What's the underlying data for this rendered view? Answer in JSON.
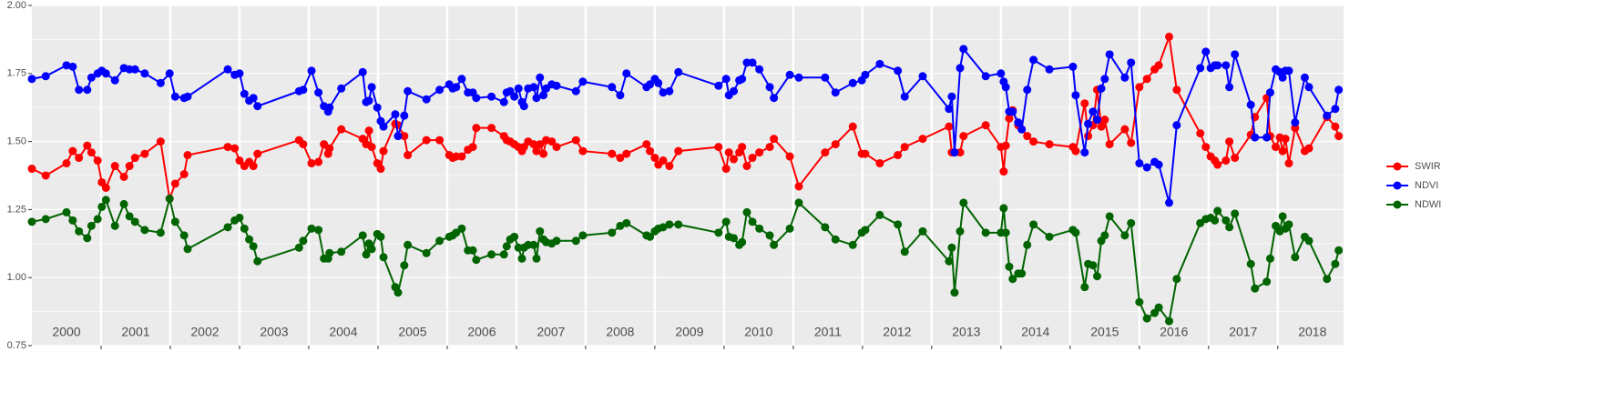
{
  "chart_data": {
    "type": "line",
    "x": [
      2000.0,
      2000.2,
      2000.5,
      2000.59,
      2000.68,
      2000.8,
      2000.86,
      2000.95,
      2001.01,
      2001.07,
      2001.2,
      2001.33,
      2001.41,
      2001.49,
      2001.63,
      2001.86,
      2001.99,
      2002.07,
      2002.2,
      2002.25,
      2002.83,
      2002.93,
      2003.0,
      2003.07,
      2003.14,
      2003.2,
      2003.26,
      2003.86,
      2003.92,
      2004.04,
      2004.14,
      2004.22,
      2004.28,
      2004.3,
      2004.47,
      2004.78,
      2004.83,
      2004.87,
      2004.91,
      2004.99,
      2005.04,
      2005.08,
      2005.25,
      2005.29,
      2005.38,
      2005.43,
      2005.7,
      2005.89,
      2006.03,
      2006.08,
      2006.13,
      2006.21,
      2006.3,
      2006.37,
      2006.42,
      2006.64,
      2006.82,
      2006.86,
      2006.91,
      2006.97,
      2007.03,
      2007.08,
      2007.11,
      2007.17,
      2007.25,
      2007.29,
      2007.34,
      2007.39,
      2007.43,
      2007.51,
      2007.58,
      2007.86,
      2007.96,
      2008.38,
      2008.5,
      2008.59,
      2008.88,
      2008.93,
      2009.0,
      2009.05,
      2009.12,
      2009.21,
      2009.34,
      2009.92,
      2010.03,
      2010.07,
      2010.14,
      2010.22,
      2010.26,
      2010.33,
      2010.41,
      2010.51,
      2010.66,
      2010.72,
      2010.95,
      2011.08,
      2011.46,
      2011.61,
      2011.86,
      2011.99,
      2012.04,
      2012.25,
      2012.51,
      2012.61,
      2012.87,
      2013.25,
      2013.29,
      2013.33,
      2013.41,
      2013.46,
      2013.78,
      2014.0,
      2014.04,
      2014.07,
      2014.12,
      2014.17,
      2014.25,
      2014.3,
      2014.38,
      2014.47,
      2014.7,
      2015.04,
      2015.08,
      2015.21,
      2015.26,
      2015.33,
      2015.39,
      2015.45,
      2015.5,
      2015.57,
      2015.79,
      2015.88,
      2016.0,
      2016.11,
      2016.22,
      2016.28,
      2016.43,
      2016.54,
      2016.88,
      2016.96,
      2017.03,
      2017.09,
      2017.13,
      2017.25,
      2017.3,
      2017.38,
      2017.61,
      2017.67,
      2017.84,
      2017.89,
      2017.97,
      2018.03,
      2018.07,
      2018.11,
      2018.16,
      2018.25,
      2018.39,
      2018.45,
      2018.71,
      2018.83,
      2018.88
    ],
    "series": [
      {
        "name": "SWIR",
        "color": "#ff0000",
        "values": [
          1.4,
          1.375,
          1.42,
          1.465,
          1.44,
          1.485,
          1.46,
          1.43,
          1.35,
          1.33,
          1.41,
          1.37,
          1.41,
          1.44,
          1.455,
          1.5,
          1.29,
          1.345,
          1.38,
          1.45,
          1.48,
          1.475,
          1.43,
          1.41,
          1.425,
          1.41,
          1.455,
          1.505,
          1.49,
          1.42,
          1.425,
          1.49,
          1.455,
          1.475,
          1.545,
          1.51,
          1.49,
          1.54,
          1.48,
          1.42,
          1.4,
          1.465,
          1.565,
          1.56,
          1.52,
          1.45,
          1.505,
          1.505,
          1.45,
          1.44,
          1.445,
          1.445,
          1.47,
          1.48,
          1.55,
          1.55,
          1.52,
          1.505,
          1.5,
          1.49,
          1.48,
          1.465,
          1.48,
          1.5,
          1.49,
          1.465,
          1.49,
          1.455,
          1.505,
          1.5,
          1.48,
          1.505,
          1.465,
          1.455,
          1.44,
          1.455,
          1.49,
          1.465,
          1.44,
          1.415,
          1.43,
          1.41,
          1.465,
          1.48,
          1.4,
          1.46,
          1.435,
          1.46,
          1.48,
          1.41,
          1.44,
          1.46,
          1.48,
          1.51,
          1.445,
          1.335,
          1.46,
          1.49,
          1.555,
          1.455,
          1.455,
          1.42,
          1.45,
          1.48,
          1.51,
          1.555,
          1.46,
          1.46,
          1.46,
          1.52,
          1.56,
          1.48,
          1.39,
          1.485,
          1.585,
          1.615,
          1.56,
          1.545,
          1.52,
          1.5,
          1.49,
          1.48,
          1.465,
          1.64,
          1.52,
          1.56,
          1.69,
          1.555,
          1.58,
          1.49,
          1.545,
          1.495,
          1.7,
          1.73,
          1.765,
          1.78,
          1.885,
          1.69,
          1.53,
          1.48,
          1.445,
          1.43,
          1.415,
          1.43,
          1.5,
          1.44,
          1.525,
          1.59,
          1.66,
          1.52,
          1.48,
          1.515,
          1.465,
          1.51,
          1.42,
          1.55,
          1.465,
          1.475,
          1.59,
          1.555,
          1.52
        ]
      },
      {
        "name": "NDVI",
        "color": "#0000ff",
        "values": [
          1.73,
          1.74,
          1.78,
          1.775,
          1.69,
          1.69,
          1.735,
          1.75,
          1.76,
          1.75,
          1.725,
          1.77,
          1.765,
          1.765,
          1.75,
          1.715,
          1.75,
          1.665,
          1.66,
          1.665,
          1.765,
          1.745,
          1.75,
          1.675,
          1.65,
          1.66,
          1.63,
          1.685,
          1.69,
          1.76,
          1.68,
          1.63,
          1.61,
          1.625,
          1.695,
          1.755,
          1.645,
          1.65,
          1.7,
          1.625,
          1.575,
          1.555,
          1.6,
          1.52,
          1.595,
          1.685,
          1.655,
          1.69,
          1.71,
          1.695,
          1.7,
          1.73,
          1.68,
          1.68,
          1.66,
          1.665,
          1.645,
          1.68,
          1.685,
          1.665,
          1.695,
          1.645,
          1.63,
          1.695,
          1.7,
          1.66,
          1.735,
          1.67,
          1.695,
          1.71,
          1.705,
          1.685,
          1.72,
          1.7,
          1.67,
          1.75,
          1.7,
          1.71,
          1.73,
          1.715,
          1.68,
          1.685,
          1.755,
          1.705,
          1.73,
          1.67,
          1.685,
          1.725,
          1.73,
          1.79,
          1.79,
          1.765,
          1.7,
          1.66,
          1.745,
          1.735,
          1.735,
          1.68,
          1.715,
          1.725,
          1.745,
          1.785,
          1.76,
          1.665,
          1.74,
          1.62,
          1.665,
          1.46,
          1.77,
          1.84,
          1.74,
          1.75,
          1.72,
          1.7,
          1.61,
          1.61,
          1.57,
          1.545,
          1.69,
          1.8,
          1.765,
          1.775,
          1.67,
          1.46,
          1.565,
          1.61,
          1.58,
          1.695,
          1.73,
          1.82,
          1.735,
          1.79,
          1.42,
          1.405,
          1.425,
          1.415,
          1.275,
          1.56,
          1.77,
          1.83,
          1.77,
          1.78,
          1.78,
          1.78,
          1.7,
          1.82,
          1.635,
          1.515,
          1.515,
          1.68,
          1.765,
          1.755,
          1.735,
          1.76,
          1.76,
          1.57,
          1.735,
          1.7,
          1.595,
          1.62,
          1.69
        ]
      },
      {
        "name": "NDWI",
        "color": "#006400",
        "values": [
          1.205,
          1.215,
          1.24,
          1.21,
          1.17,
          1.145,
          1.19,
          1.215,
          1.26,
          1.285,
          1.19,
          1.27,
          1.225,
          1.205,
          1.175,
          1.165,
          1.29,
          1.205,
          1.155,
          1.105,
          1.185,
          1.21,
          1.22,
          1.18,
          1.14,
          1.115,
          1.06,
          1.11,
          1.135,
          1.18,
          1.175,
          1.07,
          1.07,
          1.09,
          1.095,
          1.155,
          1.085,
          1.125,
          1.105,
          1.16,
          1.15,
          1.075,
          0.965,
          0.945,
          1.045,
          1.12,
          1.09,
          1.135,
          1.15,
          1.155,
          1.165,
          1.18,
          1.1,
          1.1,
          1.065,
          1.085,
          1.085,
          1.115,
          1.14,
          1.15,
          1.11,
          1.07,
          1.11,
          1.12,
          1.12,
          1.07,
          1.17,
          1.14,
          1.13,
          1.125,
          1.135,
          1.135,
          1.155,
          1.165,
          1.19,
          1.2,
          1.155,
          1.15,
          1.17,
          1.18,
          1.185,
          1.195,
          1.195,
          1.165,
          1.205,
          1.15,
          1.145,
          1.12,
          1.13,
          1.24,
          1.205,
          1.18,
          1.155,
          1.12,
          1.18,
          1.275,
          1.185,
          1.14,
          1.12,
          1.165,
          1.175,
          1.23,
          1.195,
          1.095,
          1.17,
          1.06,
          1.11,
          0.945,
          1.17,
          1.275,
          1.165,
          1.165,
          1.255,
          1.165,
          1.04,
          0.995,
          1.015,
          1.015,
          1.12,
          1.195,
          1.15,
          1.175,
          1.165,
          0.965,
          1.05,
          1.045,
          1.005,
          1.135,
          1.155,
          1.225,
          1.155,
          1.2,
          0.91,
          0.85,
          0.87,
          0.89,
          0.84,
          0.995,
          1.2,
          1.215,
          1.22,
          1.21,
          1.245,
          1.21,
          1.185,
          1.235,
          1.05,
          0.96,
          0.985,
          1.07,
          1.19,
          1.17,
          1.225,
          1.18,
          1.195,
          1.075,
          1.15,
          1.135,
          0.995,
          1.05,
          1.1
        ]
      }
    ],
    "xlim": [
      2000,
      2018.95
    ],
    "xticks": [
      2001,
      2002,
      2003,
      2004,
      2005,
      2006,
      2007,
      2008,
      2009,
      2010,
      2011,
      2012,
      2013,
      2014,
      2015,
      2016,
      2017,
      2018
    ],
    "year_labels": [
      {
        "value": 2000.5,
        "label": "2000"
      },
      {
        "value": 2001.5,
        "label": "2001"
      },
      {
        "value": 2002.5,
        "label": "2002"
      },
      {
        "value": 2003.5,
        "label": "2003"
      },
      {
        "value": 2004.5,
        "label": "2004"
      },
      {
        "value": 2005.5,
        "label": "2005"
      },
      {
        "value": 2006.5,
        "label": "2006"
      },
      {
        "value": 2007.5,
        "label": "2007"
      },
      {
        "value": 2008.5,
        "label": "2008"
      },
      {
        "value": 2009.5,
        "label": "2009"
      },
      {
        "value": 2010.5,
        "label": "2010"
      },
      {
        "value": 2011.5,
        "label": "2011"
      },
      {
        "value": 2012.5,
        "label": "2012"
      },
      {
        "value": 2013.5,
        "label": "2013"
      },
      {
        "value": 2014.5,
        "label": "2014"
      },
      {
        "value": 2015.5,
        "label": "2015"
      },
      {
        "value": 2016.5,
        "label": "2016"
      },
      {
        "value": 2017.5,
        "label": "2017"
      },
      {
        "value": 2018.5,
        "label": "2018"
      }
    ],
    "ylim": [
      0.75,
      2.0
    ],
    "yticks": [
      {
        "value": 0.75,
        "label": "0.75"
      },
      {
        "value": 1.0,
        "label": "1.00"
      },
      {
        "value": 1.25,
        "label": "1.25"
      },
      {
        "value": 1.5,
        "label": "1.50"
      },
      {
        "value": 1.75,
        "label": "1.75"
      },
      {
        "value": 2.0,
        "label": "2.00"
      }
    ],
    "y_minor_ticks": [
      0.875,
      1.125,
      1.375,
      1.625,
      1.875
    ],
    "grid": true,
    "legend": "right"
  }
}
